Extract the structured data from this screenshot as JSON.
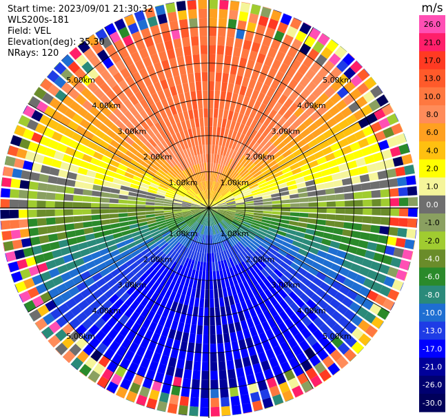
{
  "header": {
    "start_time": "Start time: 2023/09/01 21:30:32",
    "instrument": "WLS200s-181",
    "field": "Field: VEL",
    "elevation": "Elevation(deg): 35.30",
    "nrays": "NRays: 120"
  },
  "chart_data": {
    "type": "heatmap",
    "projection": "polar (PPI scan)",
    "field": "VEL",
    "units": "m/s",
    "n_rays": 120,
    "elevation_deg": 35.3,
    "range_rings_km": [
      1.0,
      2.0,
      3.0,
      4.0,
      5.0
    ],
    "range_ring_labels": [
      "1.00km",
      "2.00km",
      "3.00km",
      "4.00km",
      "5.00km"
    ],
    "max_range_km": 5.8,
    "radial_spokes_deg": [
      0,
      30,
      60,
      90,
      120,
      150,
      180,
      210,
      240,
      270,
      300,
      330
    ],
    "velocity_pattern": {
      "north_sector_mps": 13.0,
      "south_sector_mps": -17.0,
      "zero_line_axis": "east-west",
      "noise_beyond_km": 5.0
    },
    "colorbar": {
      "label": "m/s",
      "ticks": [
        "26.0",
        "21.0",
        "17.0",
        "13.0",
        "10.0",
        "8.0",
        "6.0",
        "4.0",
        "2.0",
        "1.0",
        "0.0",
        "-1.0",
        "-2.0",
        "-4.0",
        "-6.0",
        "-8.0",
        "-10.0",
        "-13.0",
        "-17.0",
        "-21.0",
        "-26.0",
        "-30.0"
      ],
      "colors": [
        "#ff4fb4",
        "#ff1f6a",
        "#ff3a22",
        "#ff5a2a",
        "#ff7840",
        "#ff8c5a",
        "#ffa020",
        "#ffc010",
        "#ffff00",
        "#f5f59a",
        "#6e6e6e",
        "#8aa060",
        "#a0cc30",
        "#6a8c2a",
        "#2a8a2a",
        "#2a8a7a",
        "#1e6ed2",
        "#1e3ce6",
        "#0000ff",
        "#00009a",
        "#000070",
        "#00005a"
      ]
    }
  }
}
